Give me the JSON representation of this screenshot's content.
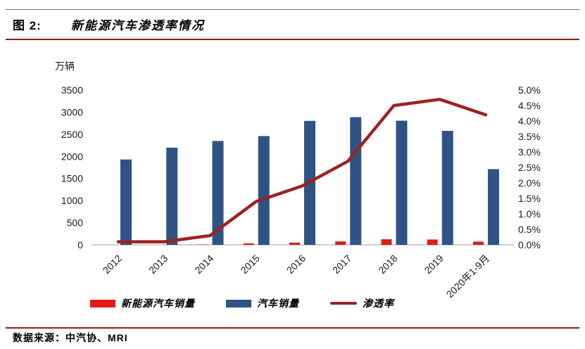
{
  "header": {
    "figure_label": "图 2:",
    "title": "新能源汽车渗透率情况"
  },
  "footer": {
    "source": "数据来源：中汽协、MRI"
  },
  "colors": {
    "nev_bar_red": "#e31a14",
    "auto_bar_blue": "#2e5384",
    "penetration_line_red": "#9e2121",
    "rule_red": "#8e1c1c",
    "baseline_gray": "#bfbfbf"
  },
  "chart_data": {
    "type": "bar",
    "title": "新能源汽车渗透率情况",
    "unit_label": "万辆",
    "categories": [
      "2012",
      "2013",
      "2014",
      "2015",
      "2016",
      "2017",
      "2018",
      "2019",
      "2020年1-9月"
    ],
    "series": [
      {
        "name": "新能源汽车销量",
        "type": "bar",
        "axis": "left",
        "color": "#e31a14",
        "values": [
          1.3,
          1.8,
          7.5,
          33,
          51,
          78,
          126,
          121,
          73
        ]
      },
      {
        "name": "汽车销量",
        "type": "bar",
        "axis": "left",
        "color": "#2e5384",
        "values": [
          1931,
          2198,
          2349,
          2460,
          2803,
          2888,
          2808,
          2577,
          1712
        ]
      },
      {
        "name": "渗透率",
        "type": "line",
        "axis": "right",
        "color": "#9e2121",
        "values": [
          0.1,
          0.1,
          0.3,
          1.4,
          1.9,
          2.7,
          4.5,
          4.7,
          4.2
        ]
      }
    ],
    "y_left": {
      "min": 0,
      "max": 3500,
      "step": 500,
      "ticks": [
        "0",
        "500",
        "1000",
        "1500",
        "2000",
        "2500",
        "3000",
        "3500"
      ]
    },
    "y_right": {
      "min": 0,
      "max": 5,
      "step": 0.5,
      "ticks": [
        "0.0%",
        "0.5%",
        "1.0%",
        "1.5%",
        "2.0%",
        "2.5%",
        "3.0%",
        "3.5%",
        "4.0%",
        "4.5%",
        "5.0%"
      ]
    },
    "legend_position": "bottom",
    "grid": false
  }
}
